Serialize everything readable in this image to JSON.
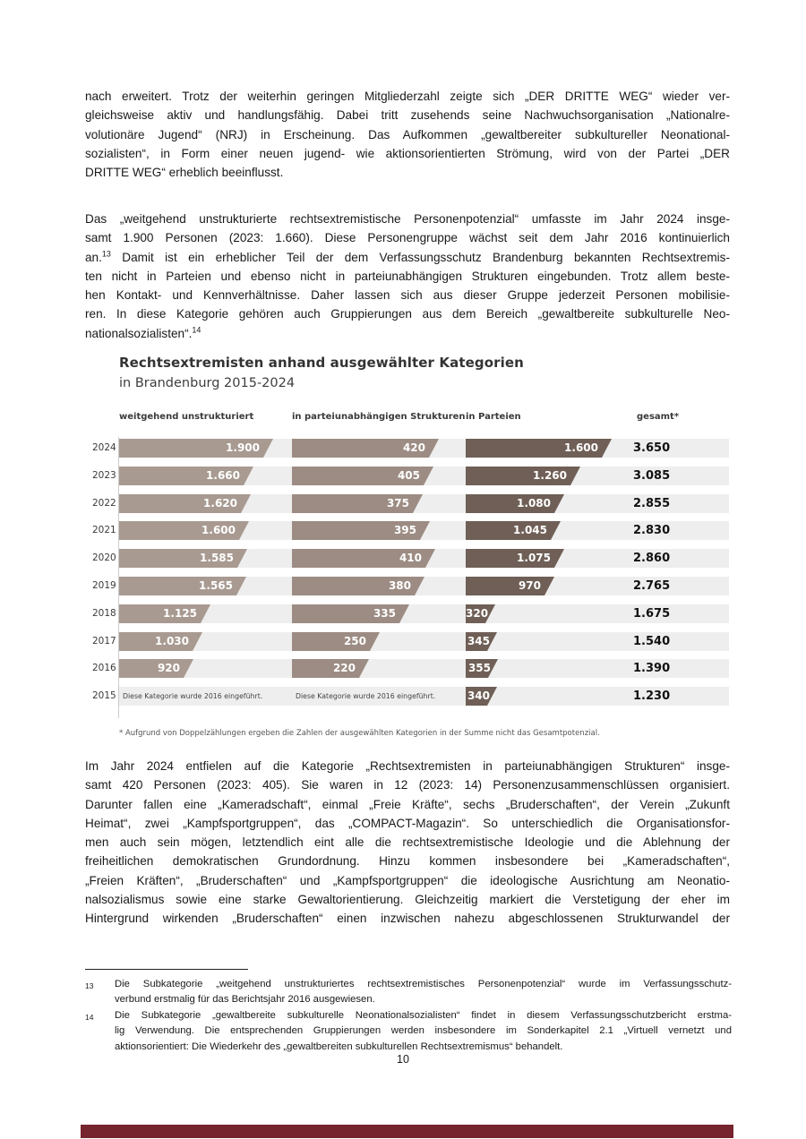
{
  "paragraphs": {
    "p1_lines": [
      "nach erweitert. Trotz der weiterhin geringen Mitgliederzahl zeigte sich „DER DRITTE WEG“ wieder ver-",
      "gleichsweise aktiv und handlungsfähig. Dabei tritt zusehends seine Nachwuchsorganisation „Nationalre-",
      "volutionäre Jugend“ (NRJ) in Erscheinung. Das Aufkommen „gewaltbereiter subkultureller Neonational-",
      "sozialisten“, in Form einer neuen jugend- wie aktionsorientierten Strömung, wird von der Partei „DER",
      "DRITTE WEG“ erheblich beeinflusst."
    ],
    "p2_lines": [
      "Das „weitgehend unstrukturierte rechtsextremistische Personenpotenzial“ umfasste im Jahr 2024 insge-",
      "samt 1.900 Personen (2023: 1.660). Diese Personengruppe wächst seit dem Jahr 2016 kontinuierlich",
      "an.^13 Damit ist ein erheblicher Teil der dem Verfassungsschutz Brandenburg bekannten Rechtsextremis-",
      "ten nicht in Parteien und ebenso nicht in parteiunabhängigen Strukturen eingebunden. Trotz allem beste-",
      "hen Kontakt- und Kennverhältnisse. Daher lassen sich aus dieser Gruppe jederzeit Personen mobilisie-",
      "ren. In diese Kategorie gehören auch Gruppierungen aus dem Bereich „gewaltbereite subkulturelle Neo-",
      "nationalsozialisten“.^14"
    ],
    "p3_lines": [
      "Im Jahr 2024 entfielen auf die Kategorie „Rechtsextremisten in parteiunabhängigen Strukturen“ insge-",
      "samt 420 Personen (2023: 405). Sie waren in 12 (2023: 14) Personenzusammenschlüssen organisiert.",
      "Darunter fallen eine „Kameradschaft“, einmal „Freie Kräfte“, sechs „Bruderschaften“, der Verein „Zukunft",
      "Heimat“, zwei „Kampfsportgruppen“, das „COMPACT-Magazin“. So unterschiedlich die Organisationsfor-",
      "men auch sein mögen, letztendlich eint alle die rechtsextremistische Ideologie und die Ablehnung der",
      "freiheitlichen demokratischen Grundordnung. Hinzu kommen insbesondere bei „Kameradschaften“,",
      "„Freien Kräften“, „Bruderschaften“ und „Kampfsportgruppen“ die ideologische Ausrichtung am Neonatio-",
      "nalsozialismus sowie eine starke Gewaltorientierung. Gleichzeitig markiert die Verstetigung der eher im",
      "Hintergrund wirkenden „Bruderschaften“ einen inzwischen nahezu abgeschlossenen Strukturwandel der"
    ]
  },
  "chart_data": {
    "type": "bar",
    "title": "Rechtsextremisten anhand ausgewählter Kategorien",
    "subtitle": "in Brandenburg 2015-2024",
    "columns": [
      "weitgehend unstrukturiert",
      "in parteiunabhängigen Strukturen",
      "in Parteien",
      "gesamt*"
    ],
    "introduced_note": "Diese Kategorie wurde 2016 eingeführt.",
    "footnote": "* Aufgrund von Doppelzählungen ergeben die Zahlen der ausgewählten Kategorien in der Summe nicht das Gesamtpotenzial.",
    "col_max": [
      1900,
      420,
      1600
    ],
    "colors": {
      "col1": "#a89a91",
      "col2": "#9c8c83",
      "col3": "#6f5f56",
      "row_bg": "#eeeeee"
    },
    "rows": [
      {
        "year": "2024",
        "unstrukturiert": 1900,
        "unstrukturiert_label": "1.900",
        "strukturen": 420,
        "strukturen_label": "420",
        "parteien": 1600,
        "parteien_label": "1.600",
        "gesamt": "3.650"
      },
      {
        "year": "2023",
        "unstrukturiert": 1660,
        "unstrukturiert_label": "1.660",
        "strukturen": 405,
        "strukturen_label": "405",
        "parteien": 1260,
        "parteien_label": "1.260",
        "gesamt": "3.085"
      },
      {
        "year": "2022",
        "unstrukturiert": 1620,
        "unstrukturiert_label": "1.620",
        "strukturen": 375,
        "strukturen_label": "375",
        "parteien": 1080,
        "parteien_label": "1.080",
        "gesamt": "2.855"
      },
      {
        "year": "2021",
        "unstrukturiert": 1600,
        "unstrukturiert_label": "1.600",
        "strukturen": 395,
        "strukturen_label": "395",
        "parteien": 1045,
        "parteien_label": "1.045",
        "gesamt": "2.830"
      },
      {
        "year": "2020",
        "unstrukturiert": 1585,
        "unstrukturiert_label": "1.585",
        "strukturen": 410,
        "strukturen_label": "410",
        "parteien": 1075,
        "parteien_label": "1.075",
        "gesamt": "2.860"
      },
      {
        "year": "2019",
        "unstrukturiert": 1565,
        "unstrukturiert_label": "1.565",
        "strukturen": 380,
        "strukturen_label": "380",
        "parteien": 970,
        "parteien_label": "970",
        "gesamt": "2.765"
      },
      {
        "year": "2018",
        "unstrukturiert": 1125,
        "unstrukturiert_label": "1.125",
        "strukturen": 335,
        "strukturen_label": "335",
        "parteien": 320,
        "parteien_label": "320",
        "gesamt": "1.675"
      },
      {
        "year": "2017",
        "unstrukturiert": 1030,
        "unstrukturiert_label": "1.030",
        "strukturen": 250,
        "strukturen_label": "250",
        "parteien": 345,
        "parteien_label": "345",
        "gesamt": "1.540"
      },
      {
        "year": "2016",
        "unstrukturiert": 920,
        "unstrukturiert_label": "920",
        "strukturen": 220,
        "strukturen_label": "220",
        "parteien": 355,
        "parteien_label": "355",
        "gesamt": "1.390"
      },
      {
        "year": "2015",
        "unstrukturiert": null,
        "unstrukturiert_label": null,
        "strukturen": null,
        "strukturen_label": null,
        "parteien": 340,
        "parteien_label": "340",
        "gesamt": "1.230"
      }
    ]
  },
  "footnotes": [
    {
      "num": "13",
      "lines": [
        "Die Subkategorie „weitgehend unstrukturiertes rechtsextremistisches Personenpotenzial“ wurde im Verfassungsschutz-",
        "verbund erstmalig für das Berichtsjahr 2016 ausgewiesen."
      ]
    },
    {
      "num": "14",
      "lines": [
        "Die Subkategorie „gewaltbereite subkulturelle Neonationalsozialisten“ findet in diesem Verfassungsschutzbericht erstma-",
        "lig Verwendung. Die entsprechenden Gruppierungen werden insbesondere im Sonderkapitel 2.1 „Virtuell vernetzt und",
        "aktionsorientiert: Die Wiederkehr des „gewaltbereiten subkulturellen Rechtsextremismus“ behandelt."
      ]
    }
  ],
  "page_number": "10",
  "footer_bar_color": "#76242e"
}
